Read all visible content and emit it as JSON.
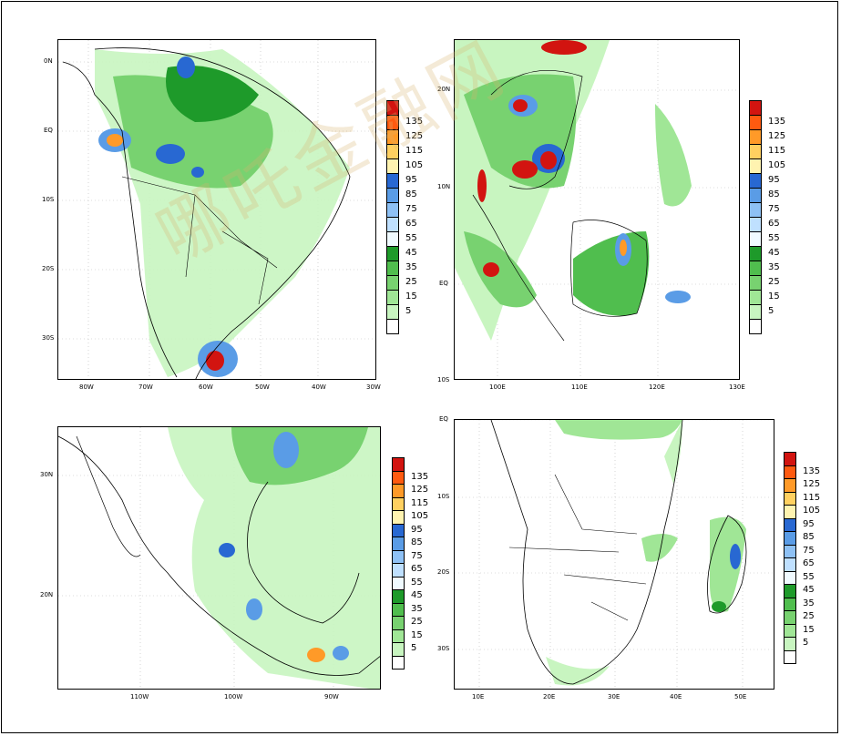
{
  "watermark": "哪吒金融网",
  "colorbar": {
    "colors": [
      "#ffffff",
      "#c8f5c0",
      "#a0e696",
      "#78d270",
      "#50be4e",
      "#1e9a2a",
      "#f0faff",
      "#bfe0ff",
      "#8ec1f5",
      "#5a9ce6",
      "#2868d2",
      "#fff3b0",
      "#ffd060",
      "#ff9a28",
      "#ff5a10",
      "#d21410"
    ],
    "labels": [
      "5",
      "15",
      "25",
      "35",
      "45",
      "55",
      "65",
      "75",
      "85",
      "95",
      "105",
      "115",
      "125",
      "135"
    ]
  },
  "panels": [
    {
      "id": "south-america",
      "xticks": [
        "80W",
        "70W",
        "60W",
        "50W",
        "40W",
        "30W"
      ],
      "yticks": [
        "0N",
        "EQ",
        "10S",
        "20S",
        "30S"
      ]
    },
    {
      "id": "southeast-asia",
      "xticks": [
        "100E",
        "110E",
        "120E",
        "130E"
      ],
      "yticks": [
        "20N",
        "10N",
        "EQ",
        "10S"
      ]
    },
    {
      "id": "mexico",
      "xticks": [
        "110W",
        "100W",
        "90W"
      ],
      "yticks": [
        "30N",
        "20N"
      ]
    },
    {
      "id": "southern-africa",
      "xticks": [
        "10E",
        "20E",
        "30E",
        "40E",
        "50E"
      ],
      "yticks": [
        "EQ",
        "10S",
        "20S",
        "30S"
      ]
    }
  ]
}
